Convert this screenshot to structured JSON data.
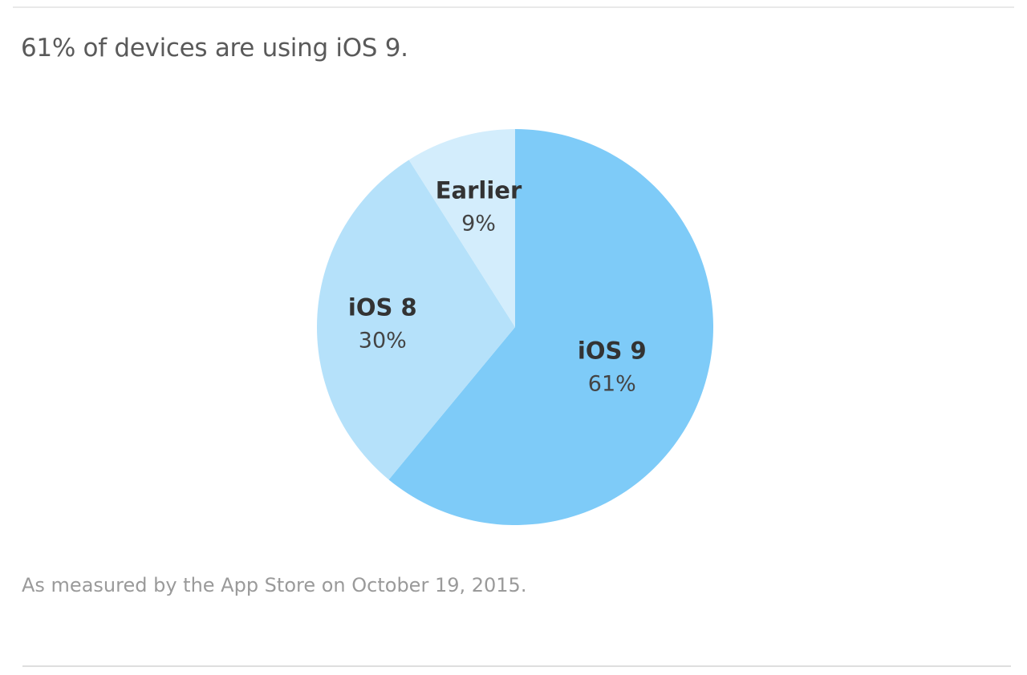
{
  "headline": "61% of devices are using iOS 9.",
  "footnote": "As measured by the App Store on October 19, 2015.",
  "chart_data": {
    "type": "pie",
    "title": "61% of devices are using iOS 9.",
    "categories": [
      "iOS 9",
      "iOS 8",
      "Earlier"
    ],
    "values": [
      61,
      30,
      9
    ],
    "value_labels": [
      "61%",
      "30%",
      "9%"
    ],
    "colors": [
      "#7ecbf8",
      "#b5e1fa",
      "#d3edfc"
    ],
    "unit": "%",
    "start": "12 o'clock",
    "direction": "clockwise",
    "legend": "none"
  }
}
